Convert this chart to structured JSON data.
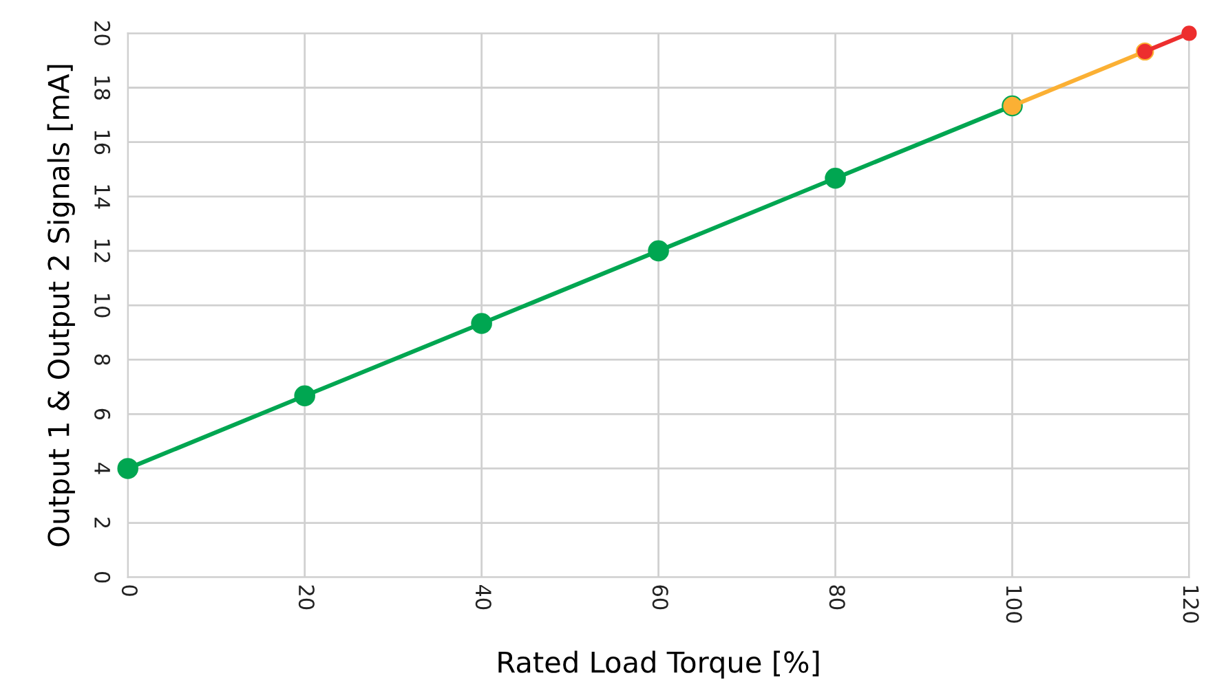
{
  "chart_data": {
    "type": "line",
    "xlabel": "Rated Load Torque [%]",
    "ylabel": "Output 1 & Output 2 Signals [mA]",
    "series": [
      {
        "color": "#00a651",
        "x": [
          0,
          20,
          40,
          60,
          80,
          100
        ],
        "values": [
          4,
          6.67,
          9.33,
          12,
          14.67,
          17.33
        ]
      },
      {
        "color": "#fbb034",
        "x": [
          100,
          115
        ],
        "values": [
          17.33,
          19.33
        ]
      },
      {
        "color": "#ed2e2e",
        "x": [
          115,
          120
        ],
        "values": [
          19.33,
          20
        ]
      }
    ],
    "xlim": [
      0,
      120
    ],
    "xticks": [
      0,
      20,
      40,
      60,
      80,
      100,
      120
    ],
    "ylim": [
      0,
      20
    ],
    "yticks": [
      0,
      2,
      4,
      6,
      8,
      10,
      12,
      14,
      16,
      18,
      20
    ],
    "grid": true,
    "legend": false,
    "marker": "circle",
    "line_style": "solid"
  }
}
